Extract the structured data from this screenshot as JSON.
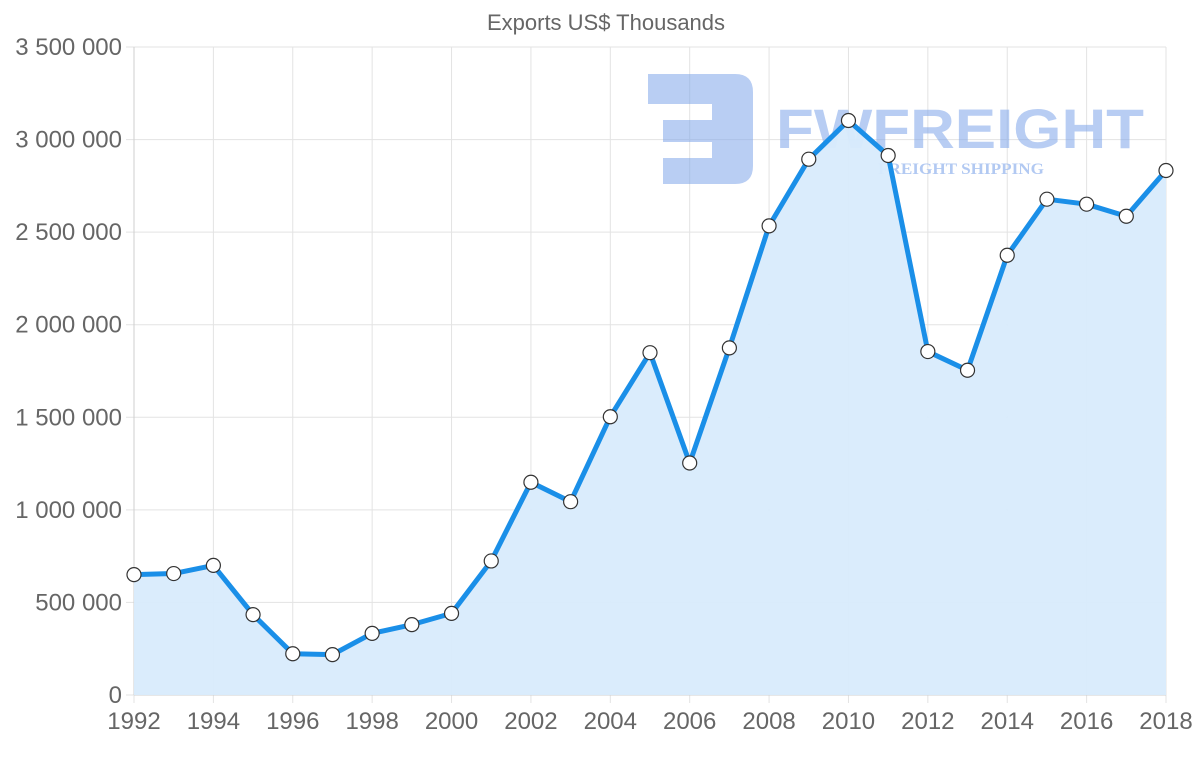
{
  "chart_data": {
    "type": "area",
    "title": "Exports US$ Thousands",
    "xlabel": "",
    "ylabel": "",
    "x": [
      1992,
      1993,
      1994,
      1995,
      1996,
      1997,
      1998,
      1999,
      2000,
      2001,
      2002,
      2003,
      2004,
      2005,
      2006,
      2007,
      2008,
      2009,
      2010,
      2011,
      2012,
      2013,
      2014,
      2015,
      2016,
      2017,
      2018
    ],
    "series": [
      {
        "name": "Exports US$ Thousands",
        "values": [
          650000,
          656000,
          700000,
          434000,
          223000,
          218000,
          333000,
          380000,
          441000,
          724000,
          1149000,
          1044000,
          1503000,
          1849000,
          1253000,
          1875000,
          2534000,
          2894000,
          3103000,
          2914000,
          1855000,
          1754000,
          2375000,
          2678000,
          2651000,
          2586000,
          2833000
        ]
      }
    ],
    "ylim": [
      0,
      3500000
    ],
    "xlim": [
      1992,
      2018
    ],
    "yticks": [
      0,
      500000,
      1000000,
      1500000,
      2000000,
      2500000,
      3000000,
      3500000
    ],
    "ytick_labels": [
      "0",
      "500 000",
      "1 000 000",
      "1 500 000",
      "2 000 000",
      "2 500 000",
      "3 000 000",
      "3 500 000"
    ],
    "xticks": [
      1992,
      1994,
      1996,
      1998,
      2000,
      2002,
      2004,
      2006,
      2008,
      2010,
      2012,
      2014,
      2016,
      2018
    ],
    "xtick_labels": [
      "1992",
      "1994",
      "1996",
      "1998",
      "2000",
      "2002",
      "2004",
      "2006",
      "2008",
      "2010",
      "2012",
      "2014",
      "2016",
      "2018"
    ],
    "grid": true,
    "legend": null,
    "colors": {
      "line": "#1a8fe8",
      "fill": "#d8ebfc",
      "point_fill": "#ffffff",
      "point_stroke": "#333333",
      "grid": "#e3e3e3",
      "text": "#666666"
    }
  },
  "watermark": {
    "brand": "FWFREIGHT",
    "tagline": "FREIGHT SHIPPING",
    "color": "#7fa6ea"
  }
}
